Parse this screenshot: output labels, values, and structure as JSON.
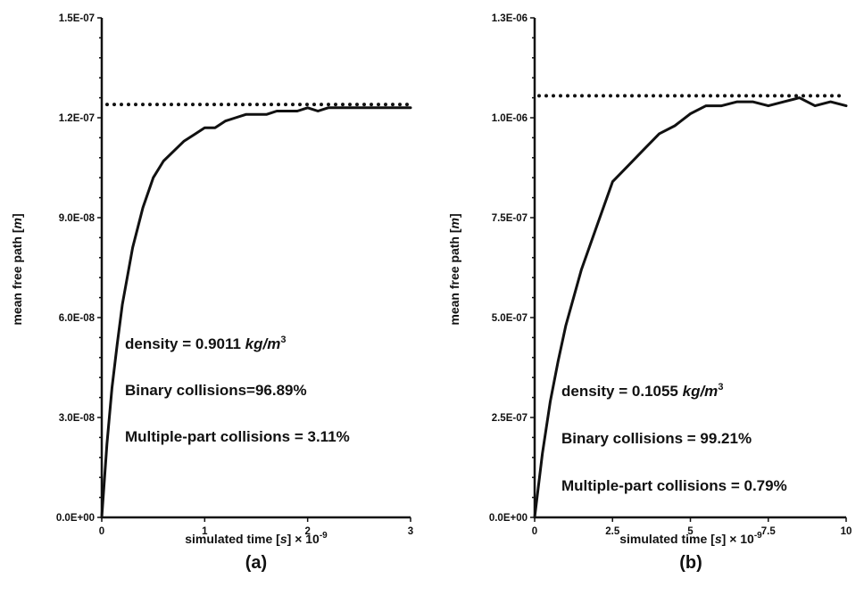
{
  "chart_data": [
    {
      "panel_label": "(a)",
      "type": "line",
      "xlabel": "simulated time [",
      "xlabel_italic": "s",
      "xlabel_suffix": "] × 10",
      "xlabel_sup": "-9",
      "ylabel": "mean free path [",
      "ylabel_italic": "m",
      "ylabel_suffix": "]",
      "xlim": [
        0,
        3
      ],
      "ylim": [
        0,
        1.5e-07
      ],
      "xticks": [
        0,
        1,
        2,
        3
      ],
      "xtick_labels": [
        "0",
        "1",
        "2",
        "3"
      ],
      "yticks": [
        0,
        3e-08,
        6e-08,
        9e-08,
        1.2e-07,
        1.5e-07
      ],
      "ytick_labels": [
        "0.0E+00",
        "3.0E-08",
        "6.0E-08",
        "9.0E-08",
        "1.2E-07",
        "1.5E-07"
      ],
      "reference_line_y": 1.24e-07,
      "series": [
        {
          "x": [
            0,
            0.05,
            0.1,
            0.15,
            0.2,
            0.3,
            0.4,
            0.5,
            0.6,
            0.7,
            0.8,
            0.9,
            1.0,
            1.1,
            1.2,
            1.3,
            1.4,
            1.5,
            1.6,
            1.7,
            1.8,
            1.9,
            2.0,
            2.1,
            2.2,
            2.3,
            2.4,
            2.5,
            2.6,
            2.7,
            2.8,
            2.9,
            3.0
          ],
          "y": [
            0,
            2.2e-08,
            3.9e-08,
            5.2e-08,
            6.4e-08,
            8.1e-08,
            9.3e-08,
            1.02e-07,
            1.07e-07,
            1.1e-07,
            1.13e-07,
            1.15e-07,
            1.17e-07,
            1.17e-07,
            1.19e-07,
            1.2e-07,
            1.21e-07,
            1.21e-07,
            1.21e-07,
            1.22e-07,
            1.22e-07,
            1.22e-07,
            1.23e-07,
            1.22e-07,
            1.23e-07,
            1.23e-07,
            1.23e-07,
            1.23e-07,
            1.23e-07,
            1.23e-07,
            1.23e-07,
            1.23e-07,
            1.23e-07
          ]
        }
      ],
      "annotations": {
        "density_prefix": "density = 0.9011 ",
        "density_unit": "kg/m",
        "density_sup": "3",
        "binary": "Binary collisions=96.89%",
        "multiple": "Multiple-part collisions = 3.11%"
      }
    },
    {
      "panel_label": "(b)",
      "type": "line",
      "xlabel": "simulated time [",
      "xlabel_italic": "s",
      "xlabel_suffix": "] × 10",
      "xlabel_sup": "-9",
      "ylabel": "mean free path [",
      "ylabel_italic": "m",
      "ylabel_suffix": "]",
      "xlim": [
        0,
        10
      ],
      "ylim": [
        0,
        1.25e-06
      ],
      "xticks": [
        0,
        2.5,
        5,
        7.5,
        10
      ],
      "xtick_labels": [
        "0",
        "2.5",
        "5",
        "7.5",
        "10"
      ],
      "yticks": [
        0,
        2.5e-07,
        5e-07,
        7.5e-07,
        1e-06,
        1.25e-06
      ],
      "ytick_labels": [
        "0.0E+00",
        "2.5E-07",
        "5.0E-07",
        "7.5E-07",
        "1.0E-06",
        "1.3E-06"
      ],
      "reference_line_y": 1.055e-06,
      "series": [
        {
          "x": [
            0,
            0.25,
            0.5,
            0.75,
            1.0,
            1.5,
            2.0,
            2.5,
            3.0,
            3.5,
            4.0,
            4.5,
            5.0,
            5.5,
            6.0,
            6.5,
            7.0,
            7.5,
            8.0,
            8.5,
            9.0,
            9.5,
            10.0
          ],
          "y": [
            0,
            1.6e-07,
            2.9e-07,
            3.9e-07,
            4.8e-07,
            6.2e-07,
            7.3e-07,
            8.4e-07,
            8.8e-07,
            9.2e-07,
            9.6e-07,
            9.8e-07,
            1.01e-06,
            1.03e-06,
            1.03e-06,
            1.04e-06,
            1.04e-06,
            1.03e-06,
            1.04e-06,
            1.05e-06,
            1.03e-06,
            1.04e-06,
            1.03e-06
          ]
        }
      ],
      "annotations": {
        "density_prefix": "density = 0.1055 ",
        "density_unit": "kg/m",
        "density_sup": "3",
        "binary": "Binary collisions = 99.21%",
        "multiple": "Multiple-part collisions = 0.79%"
      }
    }
  ]
}
